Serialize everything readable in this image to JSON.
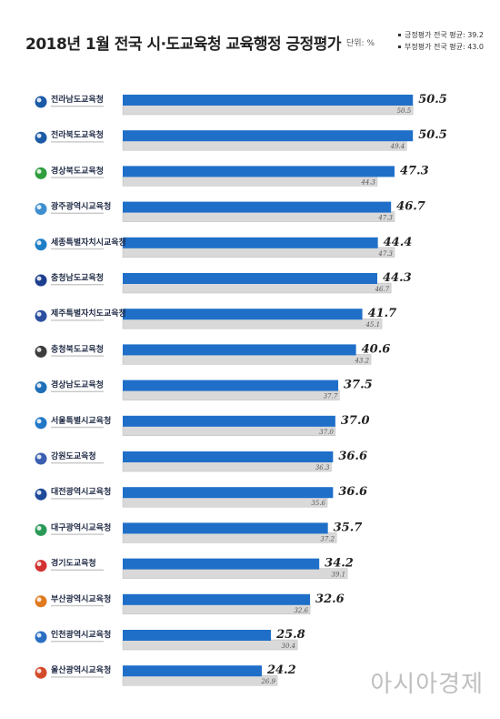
{
  "header": {
    "title": "2018년 1월 전국 시·도교육청 교육행정 긍정평가",
    "unit": "단위: %"
  },
  "colors": {
    "current": "#1f6fc9",
    "previous": "#d9d9d9",
    "previous_edge": "#bdbdbd"
  },
  "watermark": "아시아경제",
  "chart_data": {
    "type": "bar",
    "orientation": "horizontal",
    "title": "2018년 1월 전국 시·도교육청 교육행정 긍정평가",
    "unit": "단위: %",
    "xlim": [
      0,
      53
    ],
    "legend": [
      {
        "label": "긍정평가 전국 평균: 39.2",
        "color": "#333333"
      },
      {
        "label": "부정평가 전국 평균: 43.0",
        "color": "#333333"
      }
    ],
    "categories": [
      "전라남도교육청",
      "전라북도교육청",
      "경상북도교육청",
      "광주광역시교육청",
      "세종특별자치시교육청",
      "충청남도교육청",
      "제주특별자치도교육청",
      "충청북도교육청",
      "경상남도교육청",
      "서울특별시교육청",
      "강원도교육청",
      "대전광역시교육청",
      "대구광역시교육청",
      "경기도교육청",
      "부산광역시교육청",
      "인천광역시교육청",
      "울산광역시교육청"
    ],
    "series": [
      {
        "values": [
          50.5,
          50.5,
          47.3,
          46.7,
          44.4,
          44.3,
          41.7,
          40.6,
          37.5,
          37.0,
          36.6,
          36.6,
          35.7,
          34.2,
          32.6,
          25.8,
          24.2
        ]
      },
      {
        "values": [
          50.5,
          49.4,
          44.3,
          47.3,
          47.3,
          46.7,
          45.1,
          43.2,
          37.7,
          37.0,
          36.3,
          35.6,
          37.2,
          39.1,
          32.6,
          30.4,
          26.9
        ]
      }
    ],
    "value_labels_current": [
      "50.5",
      "50.5",
      "47.3",
      "46.7",
      "44.4",
      "44.3",
      "41.7",
      "40.6",
      "37.5",
      "37.0",
      "36.6",
      "36.6",
      "35.7",
      "34.2",
      "32.6",
      "25.8",
      "24.2"
    ],
    "value_labels_previous": [
      "50.5",
      "49.4",
      "44.3",
      "47.3",
      "47.3",
      "46.7",
      "45.1",
      "43.2",
      "37.7",
      "37.0",
      "36.3",
      "35.6",
      "37.2",
      "39.1",
      "32.6",
      "30.4",
      "26.9"
    ],
    "logo_colors": [
      "#1b5aa6",
      "#1b5aa6",
      "#2f9e3f",
      "#3f8fd0",
      "#1e7fc6",
      "#1e3f8f",
      "#2b4f9e",
      "#3d3d3d",
      "#1f6fb8",
      "#2277c7",
      "#3a5fb0",
      "#1e4a9a",
      "#2a9a57",
      "#d23232",
      "#e07a1f",
      "#2b6fc2",
      "#d44b2a"
    ]
  }
}
